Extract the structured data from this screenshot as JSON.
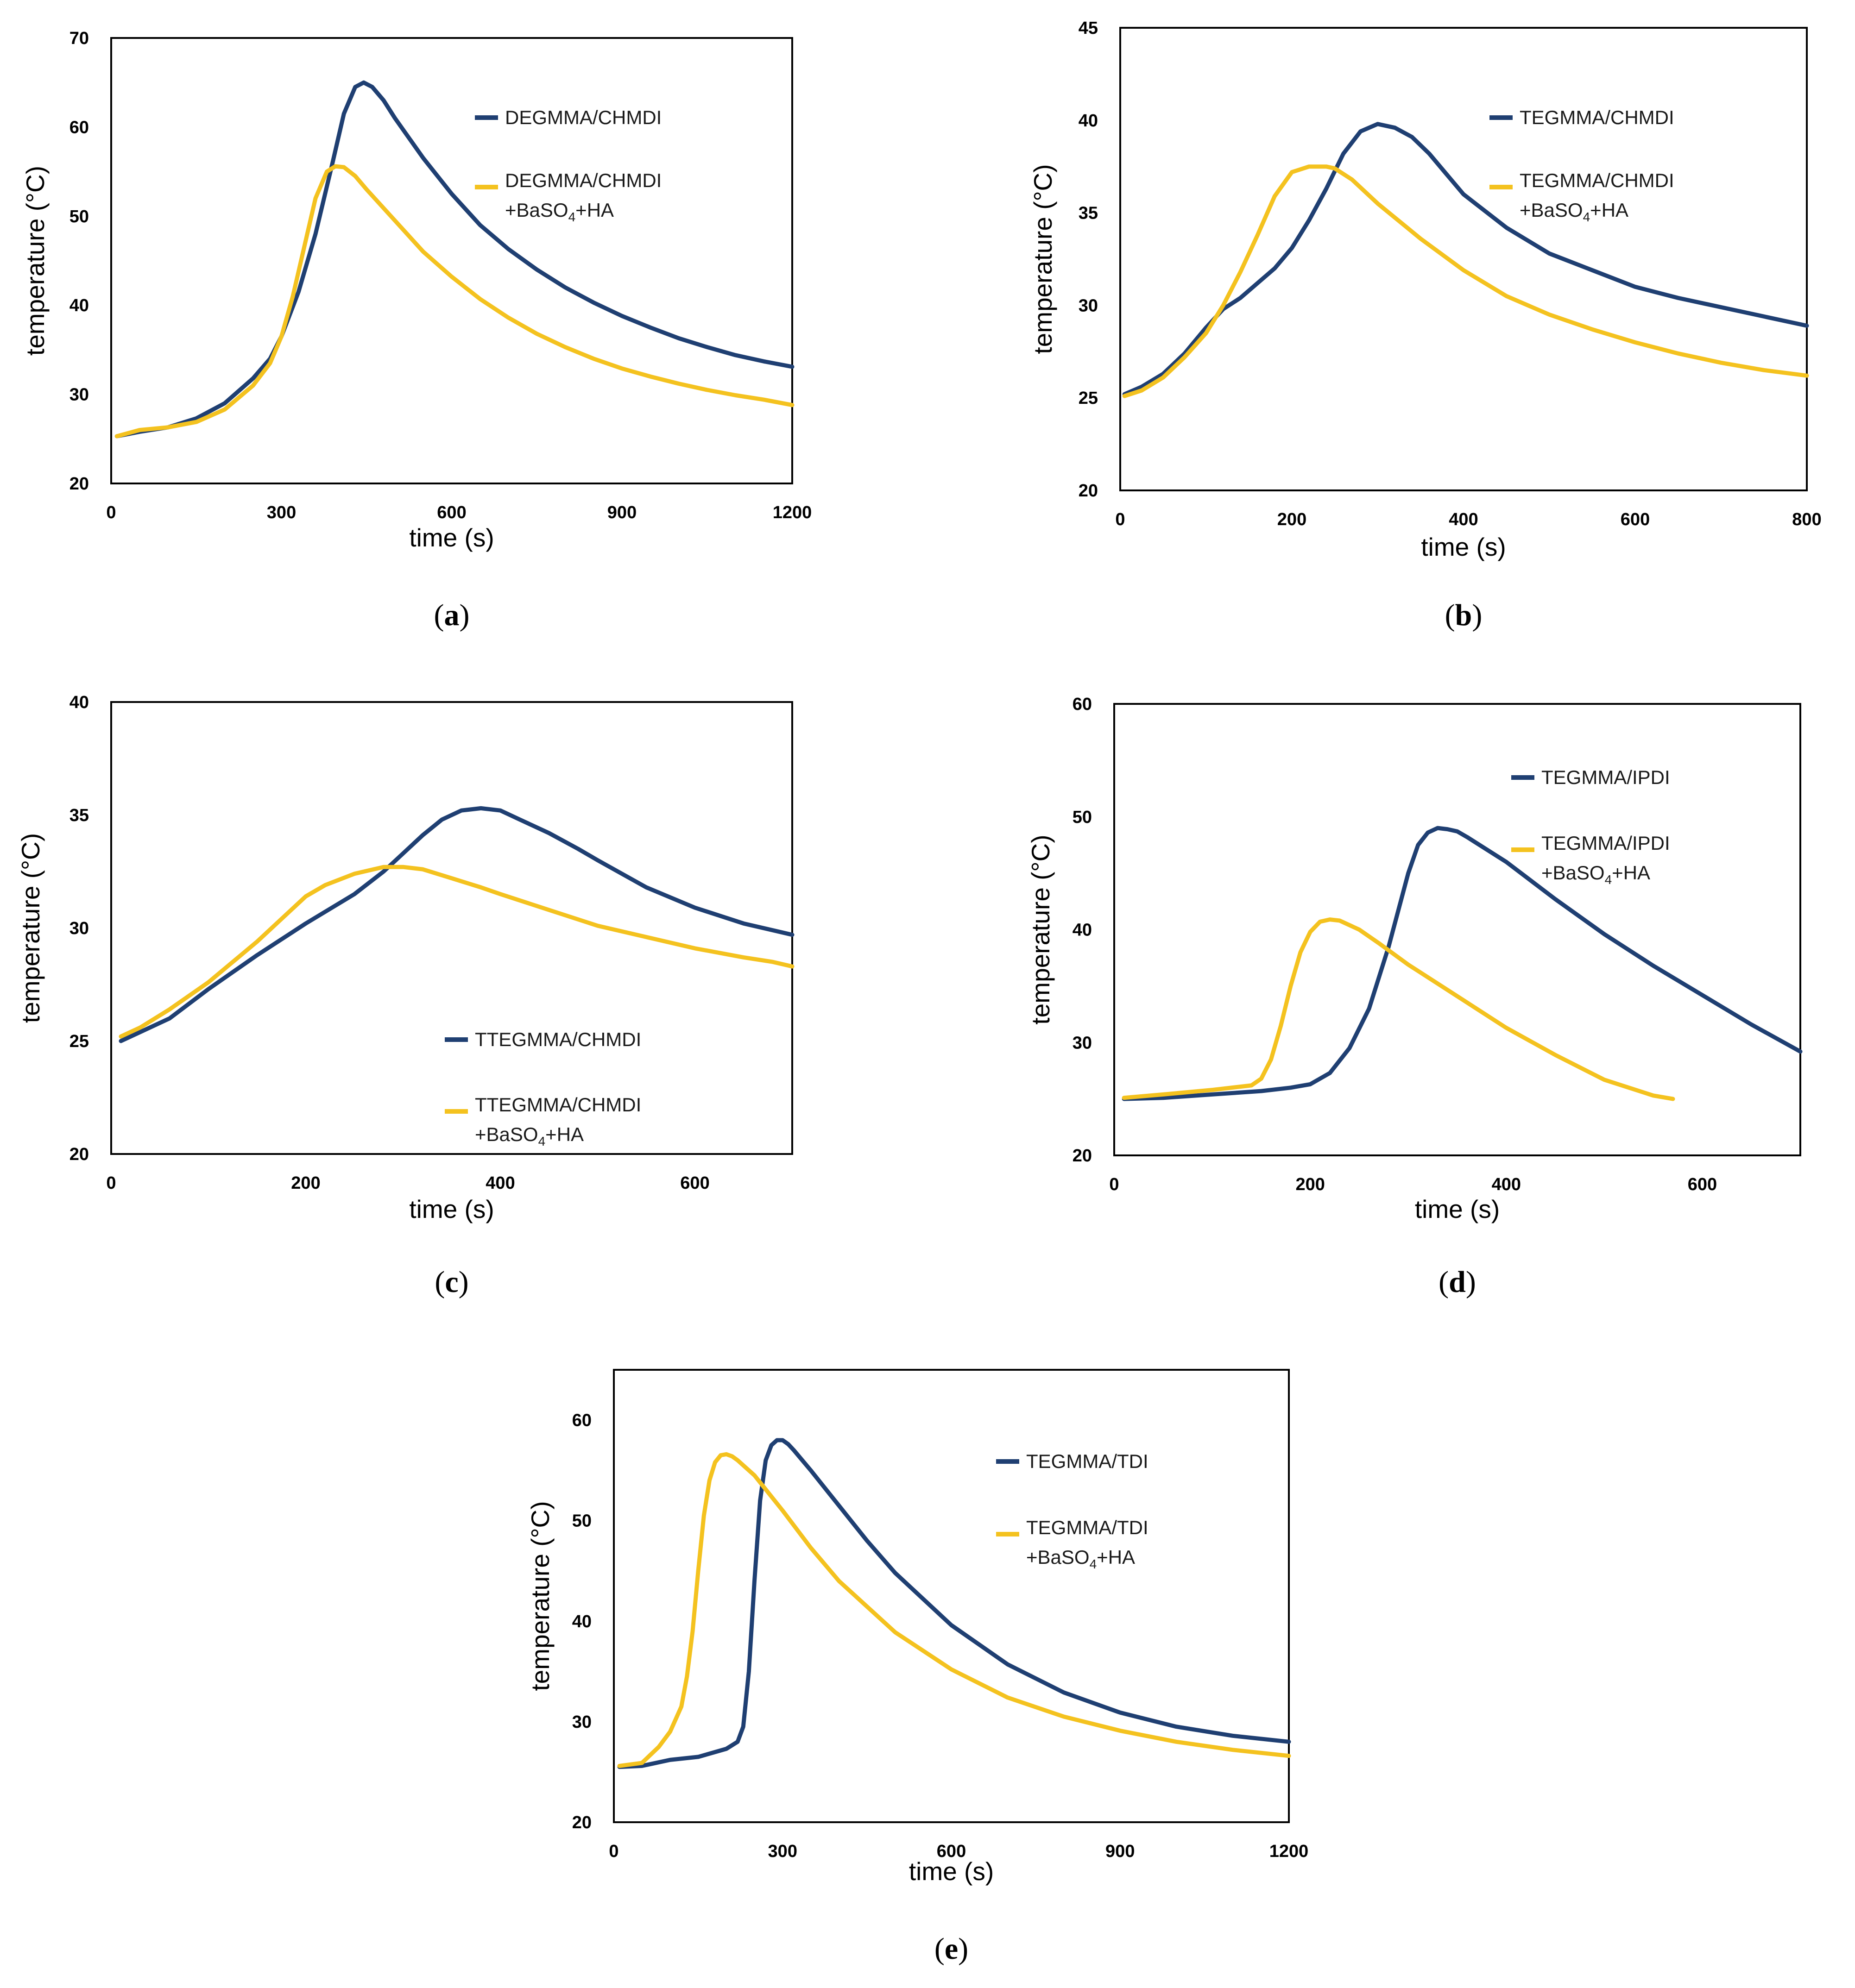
{
  "colors": {
    "blue": "#1f3f72",
    "yellow": "#f4c21f"
  },
  "chart_data": [
    {
      "type": "line",
      "panel": "a",
      "panel_label": "a",
      "xlabel": "time (s)",
      "ylabel": "temperature (°C)",
      "xlim": [
        0,
        1200
      ],
      "ylim": [
        20,
        70
      ],
      "xticks": [
        0,
        300,
        600,
        900,
        1200
      ],
      "yticks": [
        20,
        30,
        40,
        50,
        60,
        70
      ],
      "series": [
        {
          "name": "DEGMMA/CHMDI",
          "color_key": "blue",
          "x": [
            10,
            50,
            100,
            150,
            200,
            250,
            280,
            300,
            330,
            360,
            390,
            410,
            430,
            445,
            460,
            480,
            500,
            550,
            600,
            650,
            700,
            750,
            800,
            850,
            900,
            950,
            1000,
            1050,
            1100,
            1150,
            1200
          ],
          "y": [
            25.3,
            25.8,
            26.3,
            27.3,
            29.0,
            31.8,
            34.0,
            36.5,
            41.5,
            48.0,
            56.0,
            61.5,
            64.5,
            65.0,
            64.5,
            63.0,
            61.0,
            56.5,
            52.5,
            49.0,
            46.3,
            44.0,
            42.0,
            40.3,
            38.8,
            37.5,
            36.3,
            35.3,
            34.4,
            33.7,
            33.1
          ]
        },
        {
          "name": "DEGMMA/CHMDI",
          "name_line2": "+BaSO",
          "name_sub": "4",
          "name_line2_tail": "+HA",
          "color_key": "yellow",
          "x": [
            10,
            50,
            100,
            150,
            200,
            250,
            280,
            300,
            320,
            340,
            360,
            380,
            395,
            410,
            430,
            450,
            500,
            550,
            600,
            650,
            700,
            750,
            800,
            850,
            900,
            950,
            1000,
            1050,
            1100,
            1150,
            1200
          ],
          "y": [
            25.3,
            26.0,
            26.3,
            26.9,
            28.3,
            31.0,
            33.5,
            36.5,
            41.0,
            46.5,
            52.0,
            55.0,
            55.6,
            55.5,
            54.5,
            53.0,
            49.5,
            46.0,
            43.2,
            40.7,
            38.6,
            36.8,
            35.3,
            34.0,
            32.9,
            32.0,
            31.2,
            30.5,
            29.9,
            29.4,
            28.8
          ]
        }
      ]
    },
    {
      "type": "line",
      "panel": "b",
      "panel_label": "b",
      "xlabel": "time (s)",
      "ylabel": "temperature (°C)",
      "xlim": [
        0,
        800
      ],
      "ylim": [
        20,
        45
      ],
      "xticks": [
        0,
        200,
        400,
        600,
        800
      ],
      "yticks": [
        20,
        25,
        30,
        35,
        40,
        45
      ],
      "series": [
        {
          "name": "TEGMMA/CHMDI",
          "color_key": "blue",
          "x": [
            5,
            25,
            50,
            75,
            100,
            120,
            140,
            160,
            180,
            200,
            220,
            240,
            260,
            280,
            300,
            310,
            320,
            340,
            360,
            380,
            400,
            450,
            500,
            550,
            600,
            650,
            700,
            750,
            800
          ],
          "y": [
            25.2,
            25.6,
            26.3,
            27.4,
            28.8,
            29.8,
            30.4,
            31.2,
            32.0,
            33.1,
            34.6,
            36.3,
            38.2,
            39.4,
            39.8,
            39.7,
            39.6,
            39.1,
            38.2,
            37.1,
            36.0,
            34.2,
            32.8,
            31.9,
            31.0,
            30.4,
            29.9,
            29.4,
            28.9
          ]
        },
        {
          "name": "TEGMMA/CHMDI",
          "name_line2": "+BaSO",
          "name_sub": "4",
          "name_line2_tail": "+HA",
          "color_key": "yellow",
          "x": [
            5,
            25,
            50,
            75,
            100,
            120,
            140,
            160,
            180,
            200,
            220,
            240,
            250,
            270,
            300,
            350,
            400,
            450,
            500,
            550,
            600,
            650,
            700,
            750,
            800
          ],
          "y": [
            25.1,
            25.4,
            26.1,
            27.2,
            28.5,
            30.0,
            31.8,
            33.8,
            35.9,
            37.2,
            37.5,
            37.5,
            37.4,
            36.8,
            35.5,
            33.6,
            31.9,
            30.5,
            29.5,
            28.7,
            28.0,
            27.4,
            26.9,
            26.5,
            26.2
          ]
        }
      ]
    },
    {
      "type": "line",
      "panel": "c",
      "panel_label": "c",
      "xlabel": "time (s)",
      "ylabel": "temperature (°C)",
      "xlim": [
        0,
        700
      ],
      "ylim": [
        20,
        40
      ],
      "xticks": [
        0,
        200,
        400,
        600
      ],
      "yticks": [
        20,
        25,
        30,
        35,
        40
      ],
      "series": [
        {
          "name": "TTEGMMA/CHMDI",
          "color_key": "blue",
          "x": [
            10,
            30,
            60,
            100,
            150,
            200,
            250,
            280,
            300,
            320,
            340,
            360,
            380,
            400,
            420,
            450,
            480,
            500,
            550,
            600,
            650,
            700
          ],
          "y": [
            25.0,
            25.4,
            26.0,
            27.3,
            28.8,
            30.2,
            31.5,
            32.5,
            33.3,
            34.1,
            34.8,
            35.2,
            35.3,
            35.2,
            34.8,
            34.2,
            33.5,
            33.0,
            31.8,
            30.9,
            30.2,
            29.7
          ]
        },
        {
          "name": "TTEGMMA/CHMDI",
          "name_line2": "+BaSO",
          "name_sub": "4",
          "name_line2_tail": "+HA",
          "color_key": "yellow",
          "x": [
            10,
            30,
            60,
            100,
            150,
            200,
            220,
            250,
            280,
            300,
            320,
            350,
            380,
            400,
            450,
            500,
            550,
            600,
            650,
            680,
            700
          ],
          "y": [
            25.2,
            25.6,
            26.4,
            27.6,
            29.4,
            31.4,
            31.9,
            32.4,
            32.7,
            32.7,
            32.6,
            32.2,
            31.8,
            31.5,
            30.8,
            30.1,
            29.6,
            29.1,
            28.7,
            28.5,
            28.3
          ]
        }
      ]
    },
    {
      "type": "line",
      "panel": "d",
      "panel_label": "d",
      "xlabel": "time (s)",
      "ylabel": "temperature (°C)",
      "xlim": [
        0,
        700
      ],
      "ylim": [
        20,
        60
      ],
      "xticks": [
        0,
        200,
        400,
        600
      ],
      "yticks": [
        20,
        30,
        40,
        50,
        60
      ],
      "series": [
        {
          "name": "TEGMMA/IPDI",
          "color_key": "blue",
          "x": [
            10,
            50,
            100,
            150,
            180,
            200,
            220,
            240,
            260,
            280,
            300,
            310,
            320,
            330,
            340,
            350,
            360,
            400,
            450,
            500,
            550,
            600,
            650,
            700
          ],
          "y": [
            25.0,
            25.1,
            25.4,
            25.7,
            26.0,
            26.3,
            27.3,
            29.5,
            33.0,
            38.5,
            45.0,
            47.5,
            48.6,
            49.0,
            48.9,
            48.7,
            48.2,
            46.0,
            42.7,
            39.6,
            36.8,
            34.2,
            31.6,
            29.2
          ]
        },
        {
          "name": "TEGMMA/IPDI",
          "name_line2": "+BaSO",
          "name_sub": "4",
          "name_line2_tail": "+HA",
          "color_key": "yellow",
          "x": [
            10,
            50,
            100,
            140,
            150,
            160,
            170,
            180,
            190,
            200,
            210,
            220,
            230,
            250,
            270,
            300,
            350,
            400,
            450,
            500,
            550,
            570
          ],
          "y": [
            25.1,
            25.4,
            25.8,
            26.2,
            26.8,
            28.5,
            31.5,
            35.0,
            38.0,
            39.8,
            40.7,
            40.9,
            40.8,
            40.0,
            38.8,
            36.9,
            34.1,
            31.3,
            28.9,
            26.7,
            25.3,
            25.0
          ]
        }
      ]
    },
    {
      "type": "line",
      "panel": "e",
      "panel_label": "e",
      "xlabel": "time (s)",
      "ylabel": "temperature (°C)",
      "xlim": [
        0,
        1200
      ],
      "ylim": [
        20,
        65
      ],
      "xticks": [
        0,
        300,
        600,
        900,
        1200
      ],
      "yticks": [
        20,
        30,
        40,
        50,
        60
      ],
      "series": [
        {
          "name": "TEGMMA/TDI",
          "color_key": "blue",
          "x": [
            10,
            50,
            100,
            150,
            200,
            220,
            230,
            240,
            250,
            260,
            270,
            280,
            290,
            300,
            310,
            320,
            350,
            400,
            450,
            500,
            600,
            700,
            800,
            900,
            1000,
            1100,
            1200
          ],
          "y": [
            25.5,
            25.6,
            26.2,
            26.5,
            27.3,
            28.0,
            29.5,
            35.0,
            44.0,
            52.0,
            56.0,
            57.5,
            58.0,
            58.0,
            57.6,
            57.0,
            55.0,
            51.5,
            48.0,
            44.8,
            39.6,
            35.7,
            32.9,
            30.9,
            29.5,
            28.6,
            28.0
          ]
        },
        {
          "name": "TEGMMA/TDI",
          "name_line2": "+BaSO",
          "name_sub": "4",
          "name_line2_tail": "+HA",
          "color_key": "yellow",
          "x": [
            10,
            50,
            80,
            100,
            120,
            130,
            140,
            150,
            160,
            170,
            180,
            190,
            200,
            210,
            220,
            250,
            300,
            350,
            400,
            500,
            600,
            700,
            800,
            900,
            1000,
            1100,
            1200
          ],
          "y": [
            25.6,
            25.9,
            27.5,
            29.0,
            31.5,
            34.5,
            39.0,
            45.0,
            50.5,
            54.0,
            55.8,
            56.5,
            56.6,
            56.4,
            56.0,
            54.5,
            51.0,
            47.3,
            44.0,
            38.9,
            35.2,
            32.4,
            30.5,
            29.1,
            28.0,
            27.2,
            26.6
          ]
        }
      ]
    }
  ]
}
